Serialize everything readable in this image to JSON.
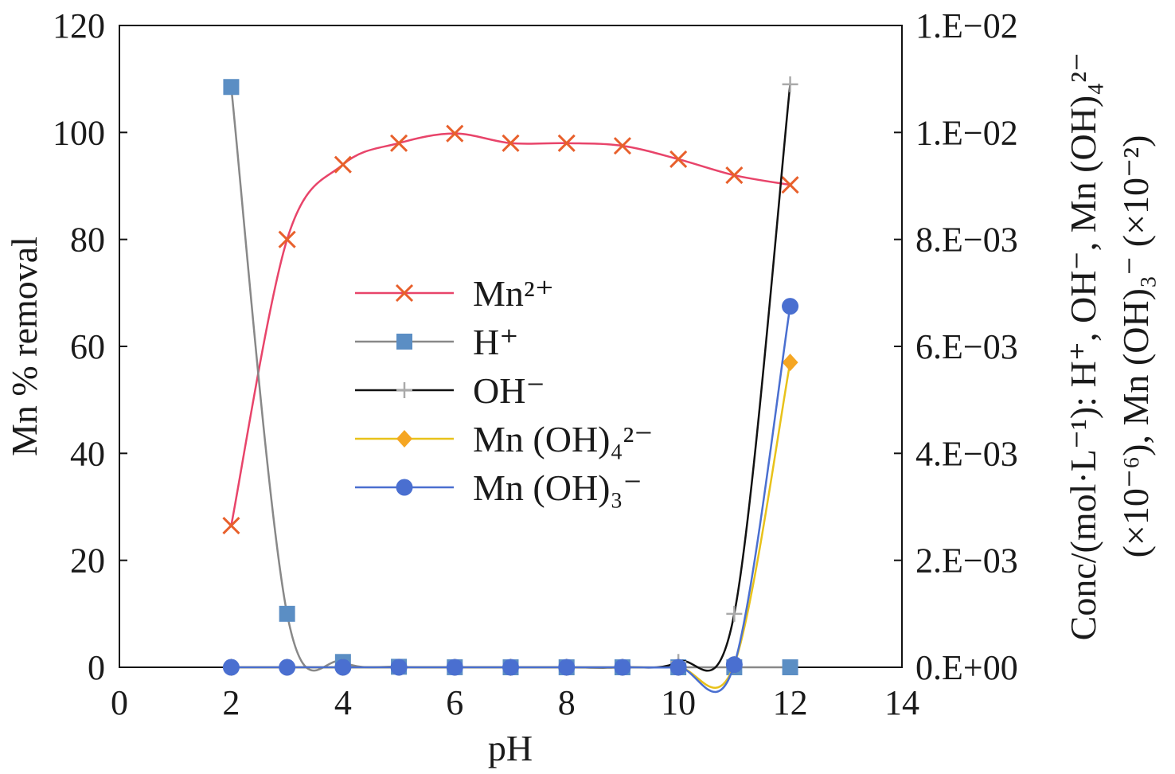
{
  "chart_data": {
    "type": "line",
    "xlabel": "pH",
    "ylabel_left": "Mn % removal",
    "ylabel_right_line1": "Conc/(mol·L⁻¹): H⁺, OH⁻, Mn (OH)₄²⁻",
    "ylabel_right_line2": "(×10⁻⁶), Mn (OH)₃⁻ (×10⁻²)",
    "x_ticks": [
      "0",
      "2",
      "4",
      "6",
      "8",
      "10",
      "12",
      "14"
    ],
    "y_left_ticks": [
      "0",
      "20",
      "40",
      "60",
      "80",
      "100",
      "120"
    ],
    "y_right_ticks": [
      "0.E+00",
      "2.E−03",
      "4.E−03",
      "6.E−03",
      "8.E−03",
      "1.E−02",
      "1.E−02"
    ],
    "xlim": [
      0,
      14
    ],
    "ylim_left": [
      0,
      120
    ],
    "ylim_right": [
      0,
      0.012
    ],
    "grid": false,
    "legend_position": "center-left",
    "series": [
      {
        "name": "Mn²⁺",
        "axis": "left",
        "marker": "x",
        "color": "#e8602c",
        "line_color": "#e8446a",
        "x": [
          2,
          3,
          4,
          5,
          6,
          7,
          8,
          9,
          10,
          11,
          12
        ],
        "values": [
          26.5,
          80,
          94,
          98,
          99.8,
          98,
          98,
          97.5,
          95,
          92,
          90.2
        ]
      },
      {
        "name": "H⁺",
        "axis": "right",
        "marker": "square",
        "color": "#5b8ec4",
        "line_color": "#888888",
        "x": [
          2,
          3,
          4,
          5,
          6,
          7,
          8,
          9,
          10,
          11,
          12
        ],
        "values": [
          0.01085,
          0.001,
          0.0001,
          1e-05,
          1e-06,
          0,
          0,
          0,
          0,
          0,
          0
        ]
      },
      {
        "name": "OH⁻",
        "axis": "right",
        "marker": "plus",
        "color": "#aaaaaa",
        "line_color": "#111111",
        "x": [
          2,
          3,
          4,
          5,
          6,
          7,
          8,
          9,
          10,
          11,
          12
        ],
        "values": [
          0,
          0,
          0,
          0,
          0,
          0,
          0,
          0,
          0.0001,
          0.001,
          0.0109
        ]
      },
      {
        "name": "Mn (OH)₄²⁻",
        "axis": "right",
        "marker": "diamond",
        "color": "#f5a623",
        "line_color": "#e8c21a",
        "x": [
          2,
          3,
          4,
          5,
          6,
          7,
          8,
          9,
          10,
          11,
          12
        ],
        "values": [
          0,
          0,
          0,
          0,
          0,
          0,
          0,
          0,
          0,
          5e-05,
          0.0057
        ]
      },
      {
        "name": "Mn (OH)₃⁻",
        "axis": "right",
        "marker": "circle",
        "color": "#4a6fd0",
        "line_color": "#4a6fd0",
        "x": [
          2,
          3,
          4,
          5,
          6,
          7,
          8,
          9,
          10,
          11,
          12
        ],
        "values": [
          0,
          0,
          0,
          0,
          0,
          0,
          0,
          0,
          0,
          5e-05,
          0.00675
        ]
      }
    ]
  }
}
